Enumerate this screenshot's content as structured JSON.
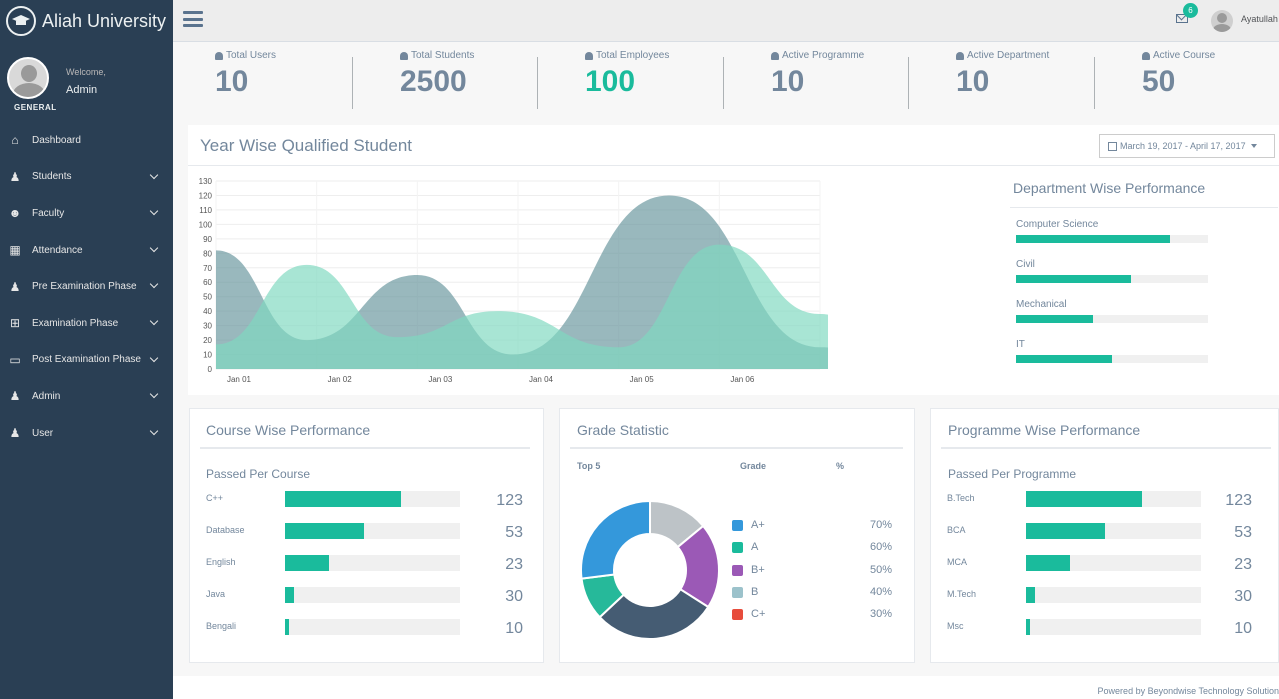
{
  "brand": {
    "name": "Aliah University"
  },
  "profile": {
    "welcome": "Welcome,",
    "name": "Admin",
    "section": "GENERAL"
  },
  "menu": [
    {
      "label": "Dashboard",
      "icon": "home-icon",
      "glyph": "⌂",
      "chevron": false
    },
    {
      "label": "Students",
      "icon": "student-icon",
      "glyph": "♟",
      "chevron": true
    },
    {
      "label": "Faculty",
      "icon": "users-icon",
      "glyph": "☻",
      "chevron": true
    },
    {
      "label": "Attendance",
      "icon": "table-icon",
      "glyph": "▦",
      "chevron": true
    },
    {
      "label": "Pre Examination Phase",
      "icon": "user-icon",
      "glyph": "♟",
      "chevron": true
    },
    {
      "label": "Examination Phase",
      "icon": "windows-icon",
      "glyph": "⊞",
      "chevron": true
    },
    {
      "label": "Post Examination Phase",
      "icon": "laptop-icon",
      "glyph": "▭",
      "chevron": true
    },
    {
      "label": "Admin",
      "icon": "male-icon",
      "glyph": "♟",
      "chevron": true
    },
    {
      "label": "User",
      "icon": "user-icon",
      "glyph": "♟",
      "chevron": true
    }
  ],
  "topbar": {
    "notifications": "6",
    "user": "Ayatullah"
  },
  "tiles": [
    {
      "label": "Total Users",
      "value": "10",
      "highlight": false
    },
    {
      "label": "Total Students",
      "value": "2500",
      "highlight": false
    },
    {
      "label": "Total Employees",
      "value": "100",
      "highlight": true
    },
    {
      "label": "Active Programme",
      "value": "10",
      "highlight": false
    },
    {
      "label": "Active Department",
      "value": "10",
      "highlight": false
    },
    {
      "label": "Active Course",
      "value": "50",
      "highlight": false
    }
  ],
  "yearwise": {
    "title": "Year Wise Qualified Student",
    "daterange": "March 19, 2017 - April 17, 2017"
  },
  "department": {
    "title": "Department Wise Performance",
    "items": [
      {
        "label": "Computer Science",
        "value": 80
      },
      {
        "label": "Civil",
        "value": 60
      },
      {
        "label": "Mechanical",
        "value": 40
      },
      {
        "label": "IT",
        "value": 50
      }
    ]
  },
  "course": {
    "title": "Course Wise Performance",
    "subtitle": "Passed Per Course",
    "rows": [
      {
        "label": "C++",
        "value": "123",
        "fill": 0.66
      },
      {
        "label": "Database",
        "value": "53",
        "fill": 0.45
      },
      {
        "label": "English",
        "value": "23",
        "fill": 0.25
      },
      {
        "label": "Java",
        "value": "30",
        "fill": 0.05
      },
      {
        "label": "Bengali",
        "value": "10",
        "fill": 0.02
      }
    ]
  },
  "grade": {
    "title": "Grade Statistic",
    "col_top": "Top 5",
    "col_grade": "Grade",
    "col_pct": "%",
    "rows": [
      {
        "label": "A+",
        "pct": "70%",
        "color": "#3498db"
      },
      {
        "label": "A",
        "pct": "60%",
        "color": "#1abb9c"
      },
      {
        "label": "B+",
        "pct": "50%",
        "color": "#9b59b6"
      },
      {
        "label": "B",
        "pct": "40%",
        "color": "#9cc2cb"
      },
      {
        "label": "C+",
        "pct": "30%",
        "color": "#e74c3c"
      }
    ],
    "donut": [
      {
        "name": "grey",
        "value": 14,
        "color": "#bdc3c7"
      },
      {
        "name": "purple",
        "value": 20,
        "color": "#9b59b6"
      },
      {
        "name": "dark",
        "value": 29,
        "color": "#455c73"
      },
      {
        "name": "green",
        "value": 10,
        "color": "#26b99a"
      },
      {
        "name": "blue",
        "value": 27,
        "color": "#3498db"
      }
    ]
  },
  "programme": {
    "title": "Programme Wise Performance",
    "subtitle": "Passed Per Programme",
    "rows": [
      {
        "label": "B.Tech",
        "value": "123",
        "fill": 0.66
      },
      {
        "label": "BCA",
        "value": "53",
        "fill": 0.45
      },
      {
        "label": "MCA",
        "value": "23",
        "fill": 0.25
      },
      {
        "label": "M.Tech",
        "value": "30",
        "fill": 0.05
      },
      {
        "label": "Msc",
        "value": "10",
        "fill": 0.02
      }
    ]
  },
  "footer": {
    "text": "Powered by Beyondwise Technology Solution"
  },
  "chart_data": {
    "type": "area",
    "x": [
      "Jan 01",
      "Jan 02",
      "Jan 03",
      "Jan 04",
      "Jan 05",
      "Jan 06"
    ],
    "ylim": [
      0,
      130
    ],
    "yticks": [
      0,
      10,
      20,
      30,
      40,
      50,
      60,
      70,
      80,
      90,
      100,
      110,
      120,
      130
    ],
    "series": [
      {
        "color": "#5a8d95",
        "points": [
          [
            0,
            82
          ],
          [
            0.9,
            20
          ],
          [
            2,
            65
          ],
          [
            2.95,
            10
          ],
          [
            4.5,
            120
          ],
          [
            6,
            15
          ],
          [
            6.8,
            8
          ]
        ]
      },
      {
        "color": "#7fd8c0",
        "points": [
          [
            0,
            17
          ],
          [
            0.9,
            72
          ],
          [
            1.8,
            22
          ],
          [
            2.8,
            40
          ],
          [
            4,
            15
          ],
          [
            5,
            86
          ],
          [
            6,
            38
          ],
          [
            6.8,
            10
          ]
        ]
      }
    ]
  }
}
